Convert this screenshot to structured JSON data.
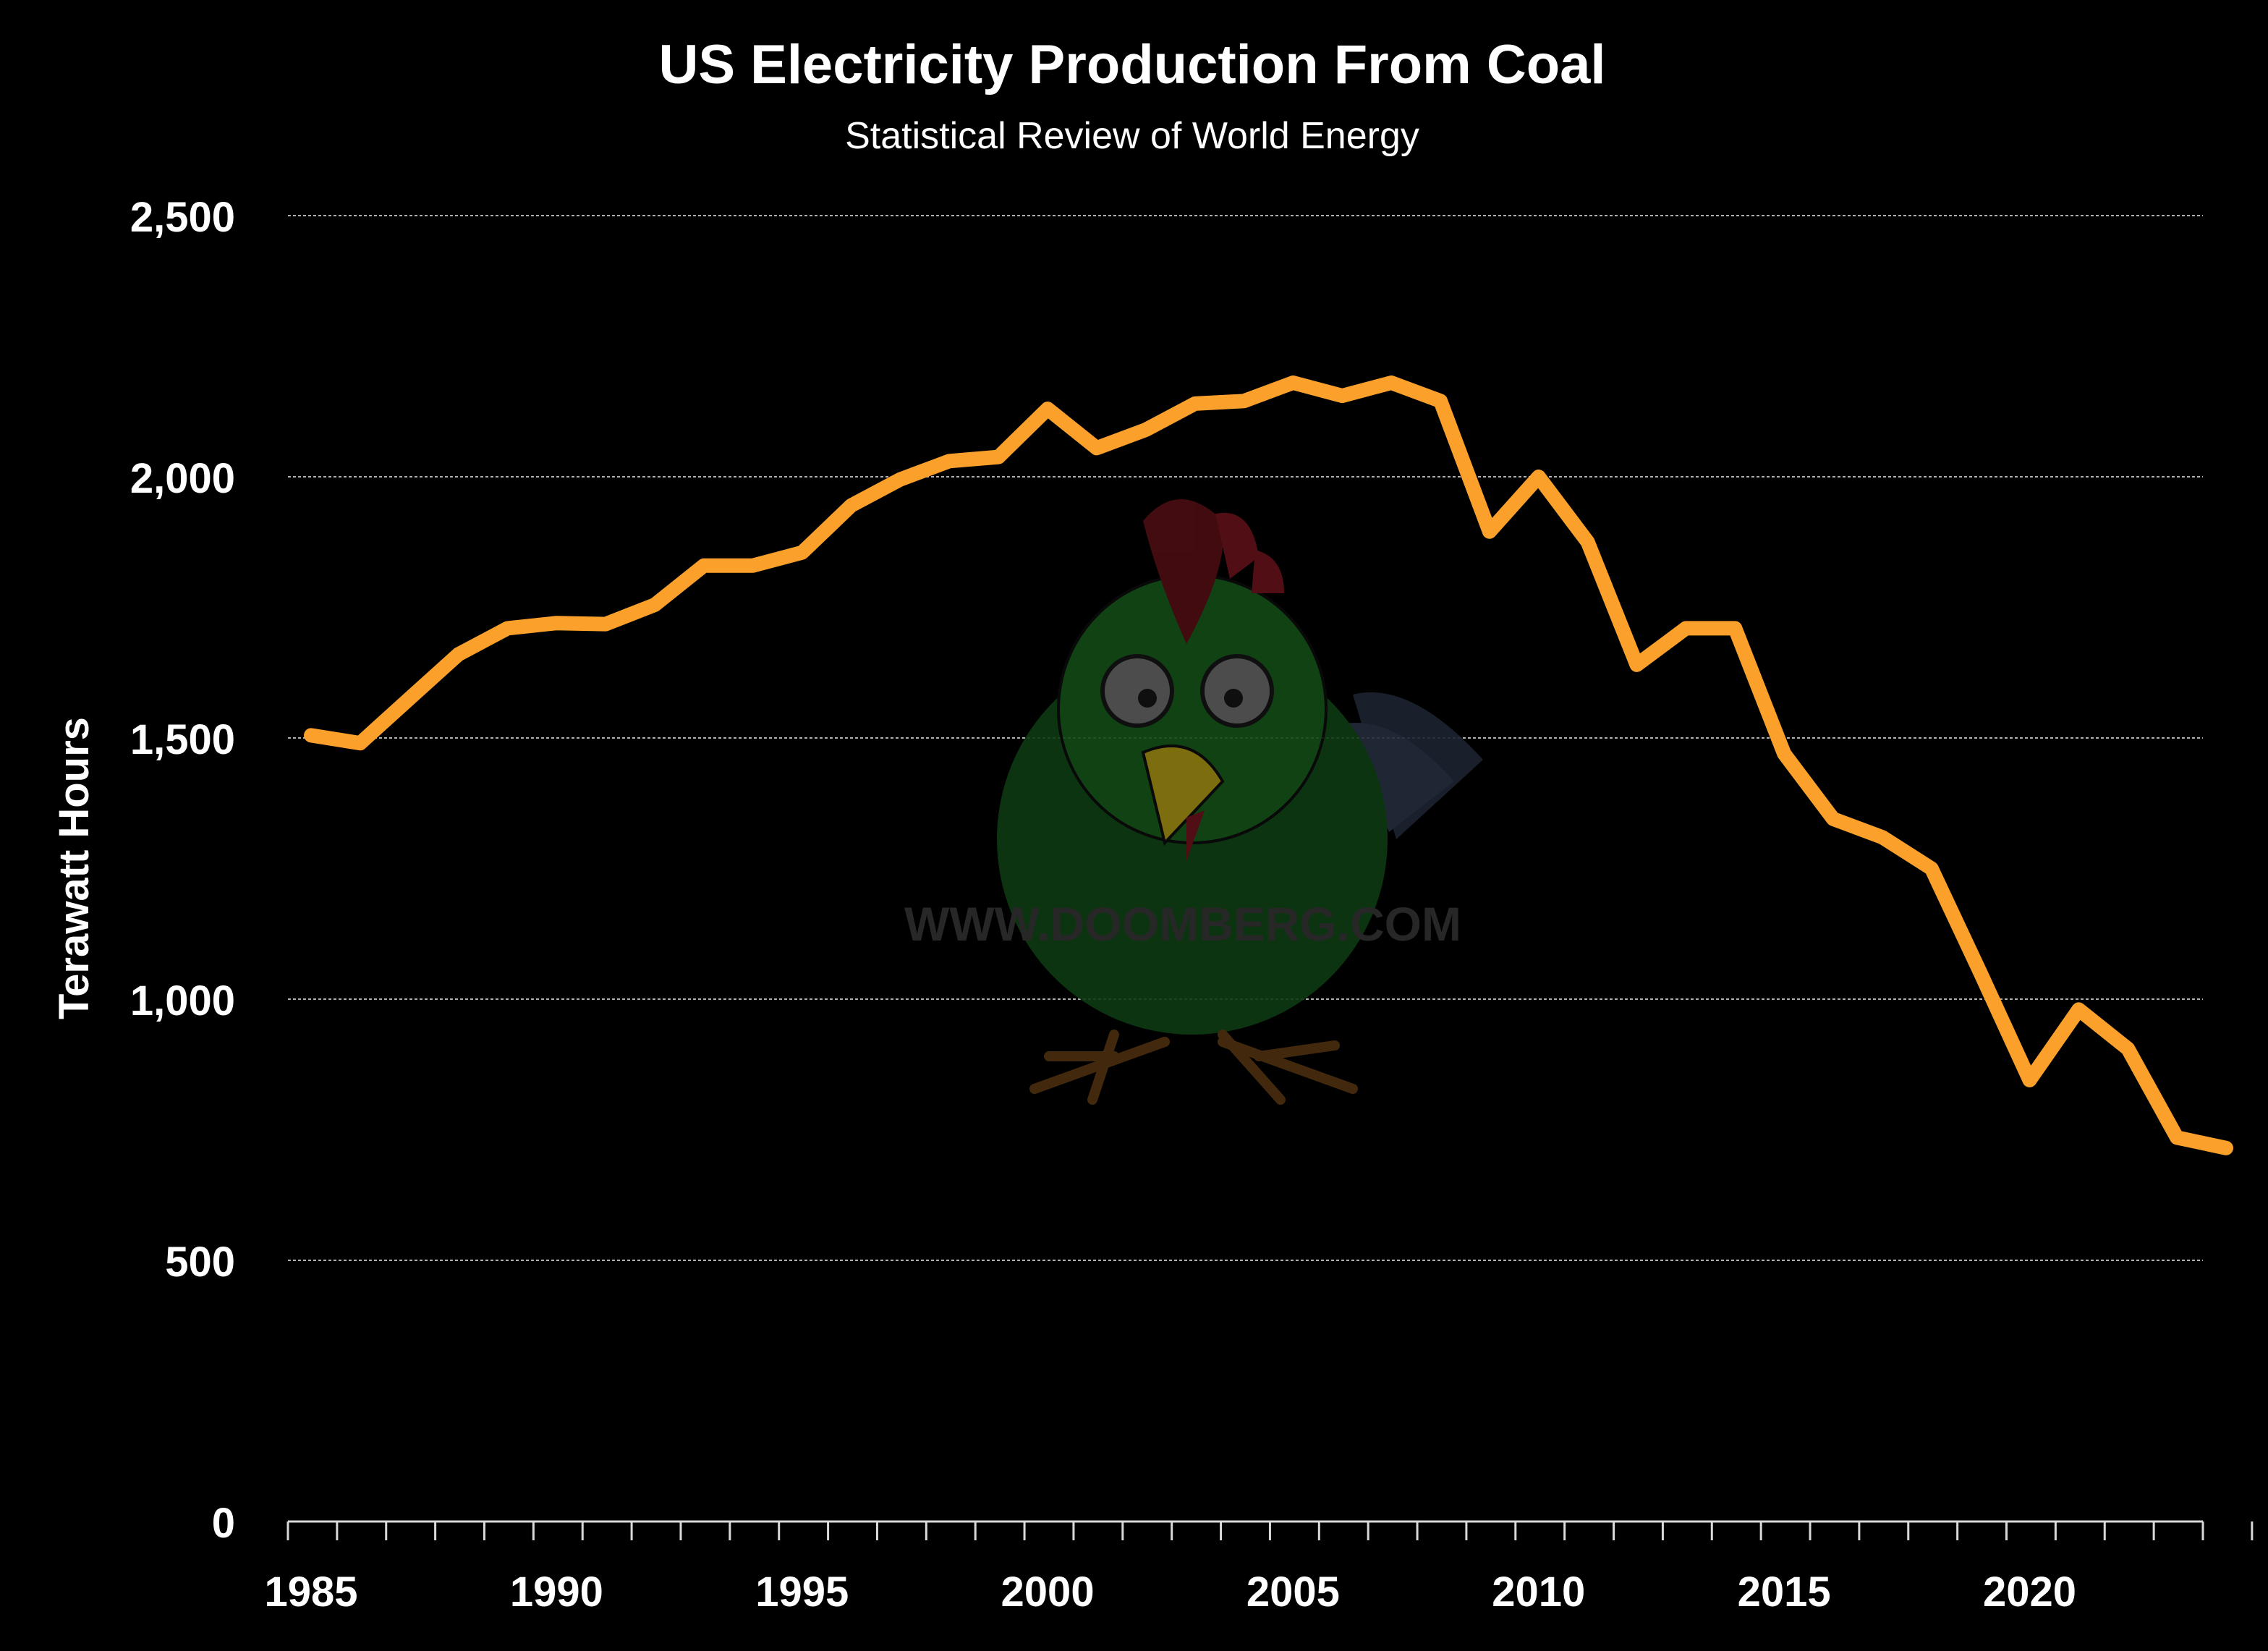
{
  "colors": {
    "background": "#000000",
    "line": "#FBA12B",
    "text": "#FFFFFF",
    "grid": "#B0B0B0"
  },
  "watermark": {
    "text": "WWW.DOOMBERG.COM",
    "icon": "rooster-mascot-icon"
  },
  "chart_data": {
    "type": "line",
    "title": "US Electricity Production From Coal",
    "subtitle": "Statistical Review of World Energy",
    "xlabel": "",
    "ylabel": "Terawatt Hours",
    "xlim": [
      1985,
      2024
    ],
    "ylim": [
      0,
      2500
    ],
    "grid": true,
    "x_ticks": [
      1985,
      1990,
      1995,
      2000,
      2005,
      2010,
      2015,
      2020
    ],
    "y_ticks": [
      0,
      500,
      1000,
      1500,
      2000,
      2500
    ],
    "y_tick_labels": [
      "0",
      "500",
      "1,000",
      "1,500",
      "2,000",
      "2,500"
    ],
    "series": [
      {
        "name": "US Electricity Production From Coal",
        "x": [
          1985,
          1986,
          1987,
          1988,
          1989,
          1990,
          1991,
          1992,
          1993,
          1994,
          1995,
          1996,
          1997,
          1998,
          1999,
          2000,
          2001,
          2002,
          2003,
          2004,
          2005,
          2006,
          2007,
          2008,
          2009,
          2010,
          2011,
          2012,
          2013,
          2014,
          2015,
          2016,
          2017,
          2018,
          2019,
          2020,
          2021,
          2022,
          2023,
          2024
        ],
        "values": [
          1505,
          1490,
          1575,
          1660,
          1710,
          1720,
          1718,
          1755,
          1830,
          1830,
          1855,
          1945,
          1995,
          2030,
          2038,
          2130,
          2055,
          2090,
          2140,
          2145,
          2180,
          2155,
          2180,
          2145,
          1895,
          2000,
          1875,
          1640,
          1710,
          1710,
          1470,
          1345,
          1310,
          1250,
          1050,
          845,
          980,
          905,
          735,
          715
        ]
      }
    ]
  }
}
